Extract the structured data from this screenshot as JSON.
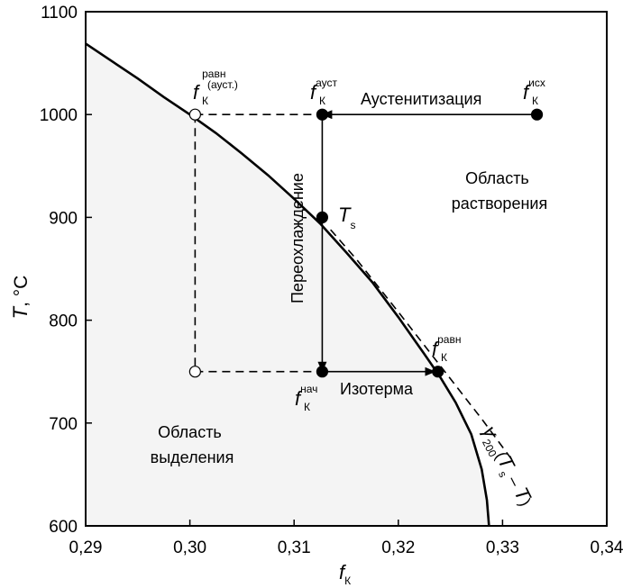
{
  "chart_data": {
    "type": "line",
    "title": "",
    "xlabel": {
      "symbol": "f",
      "sub": "К"
    },
    "ylabel": {
      "symbol": "T",
      "unit": ", °C"
    },
    "xlim": [
      0.29,
      0.34
    ],
    "ylim": [
      600,
      1100
    ],
    "x_ticks": [
      0.29,
      0.3,
      0.31,
      0.32,
      0.33,
      0.34
    ],
    "x_tick_labels": [
      "0,29",
      "0,30",
      "0,31",
      "0,32",
      "0,33",
      "0,34"
    ],
    "y_ticks": [
      600,
      700,
      800,
      900,
      1000,
      1100
    ],
    "y_tick_labels": [
      "600",
      "700",
      "800",
      "900",
      "1000",
      "1100"
    ],
    "grid": false,
    "series": [
      {
        "style": "solid",
        "x": [
          0.29,
          0.2925,
          0.295,
          0.2975,
          0.3,
          0.3025,
          0.305,
          0.3075,
          0.31,
          0.3125,
          0.315,
          0.3175,
          0.32,
          0.3225,
          0.324,
          0.3255,
          0.327,
          0.328,
          0.3285,
          0.3287
        ],
        "y": [
          1069,
          1052,
          1035,
          1017,
          1000,
          982,
          962,
          941,
          918,
          894,
          866,
          837,
          803,
          767,
          745,
          720,
          689,
          655,
          625,
          600
        ]
      },
      {
        "style": "dashed",
        "x": [
          0.3135,
          0.316,
          0.32,
          0.324,
          0.328,
          0.331
        ],
        "y": [
          888,
          859,
          808,
          756,
          704,
          663
        ]
      }
    ],
    "paths": [
      {
        "name": "austenitization-arrow",
        "style": "solid-arrow",
        "x": [
          0.3333,
          0.3127
        ],
        "y": [
          1000,
          1000
        ]
      },
      {
        "name": "overcooling-arrow",
        "style": "solid-arrow",
        "x": [
          0.3127,
          0.3127
        ],
        "y": [
          1000,
          750
        ]
      },
      {
        "name": "isotherm-arrow",
        "style": "solid-arrow",
        "x": [
          0.3127,
          0.3235
        ],
        "y": [
          750,
          750
        ]
      },
      {
        "name": "equilibrium-dashed-top",
        "style": "dashed",
        "x": [
          0.3005,
          0.3127
        ],
        "y": [
          1000,
          1000
        ]
      },
      {
        "name": "equilibrium-dashed-vertical",
        "style": "dashed",
        "x": [
          0.3005,
          0.3005
        ],
        "y": [
          1000,
          750
        ]
      },
      {
        "name": "equilibrium-dashed-bottom",
        "style": "dashed",
        "x": [
          0.3005,
          0.3127
        ],
        "y": [
          750,
          750
        ]
      }
    ],
    "points": [
      {
        "name": "f-isx",
        "x": 0.3333,
        "y": 1000,
        "filled": true
      },
      {
        "name": "f-aust",
        "x": 0.3127,
        "y": 1000,
        "filled": true
      },
      {
        "name": "ts",
        "x": 0.3127,
        "y": 900,
        "filled": true
      },
      {
        "name": "f-nach",
        "x": 0.3127,
        "y": 750,
        "filled": true
      },
      {
        "name": "f-ravn",
        "x": 0.3238,
        "y": 750,
        "filled": true
      },
      {
        "name": "f-ravn-aust",
        "x": 0.3005,
        "y": 1000,
        "filled": false
      },
      {
        "name": "open-750",
        "x": 0.3005,
        "y": 750,
        "filled": false
      }
    ],
    "annotations": {
      "austenitization": "Аустенитизация",
      "overcooling": "Переохлаждение",
      "isotherm": "Изотерма",
      "dissolution_region": [
        "Область",
        "растворения"
      ],
      "precipitation_region": [
        "Область",
        "выделения"
      ],
      "f_isx": {
        "symbol": "f",
        "sub": "К",
        "sup": "исх"
      },
      "f_aust": {
        "symbol": "f",
        "sub": "К",
        "sup": "ауст"
      },
      "f_ravn_aust": {
        "symbol": "f",
        "sub": "К",
        "sup": "равн",
        "sup2": "(ауст.)"
      },
      "f_ravn": {
        "symbol": "f",
        "sub": "К",
        "sup": "равн"
      },
      "f_nach": {
        "symbol": "f",
        "sub": "К",
        "sup": "нач"
      },
      "ts": {
        "symbol": "T",
        "sub": "s"
      },
      "tangent": {
        "symbol": "γ",
        "sub": "200",
        "expr_open": "(",
        "expr_T1": "T",
        "expr_sub": "s",
        "expr_mid": " – ",
        "expr_T2": "T",
        "expr_close": ")"
      }
    }
  }
}
